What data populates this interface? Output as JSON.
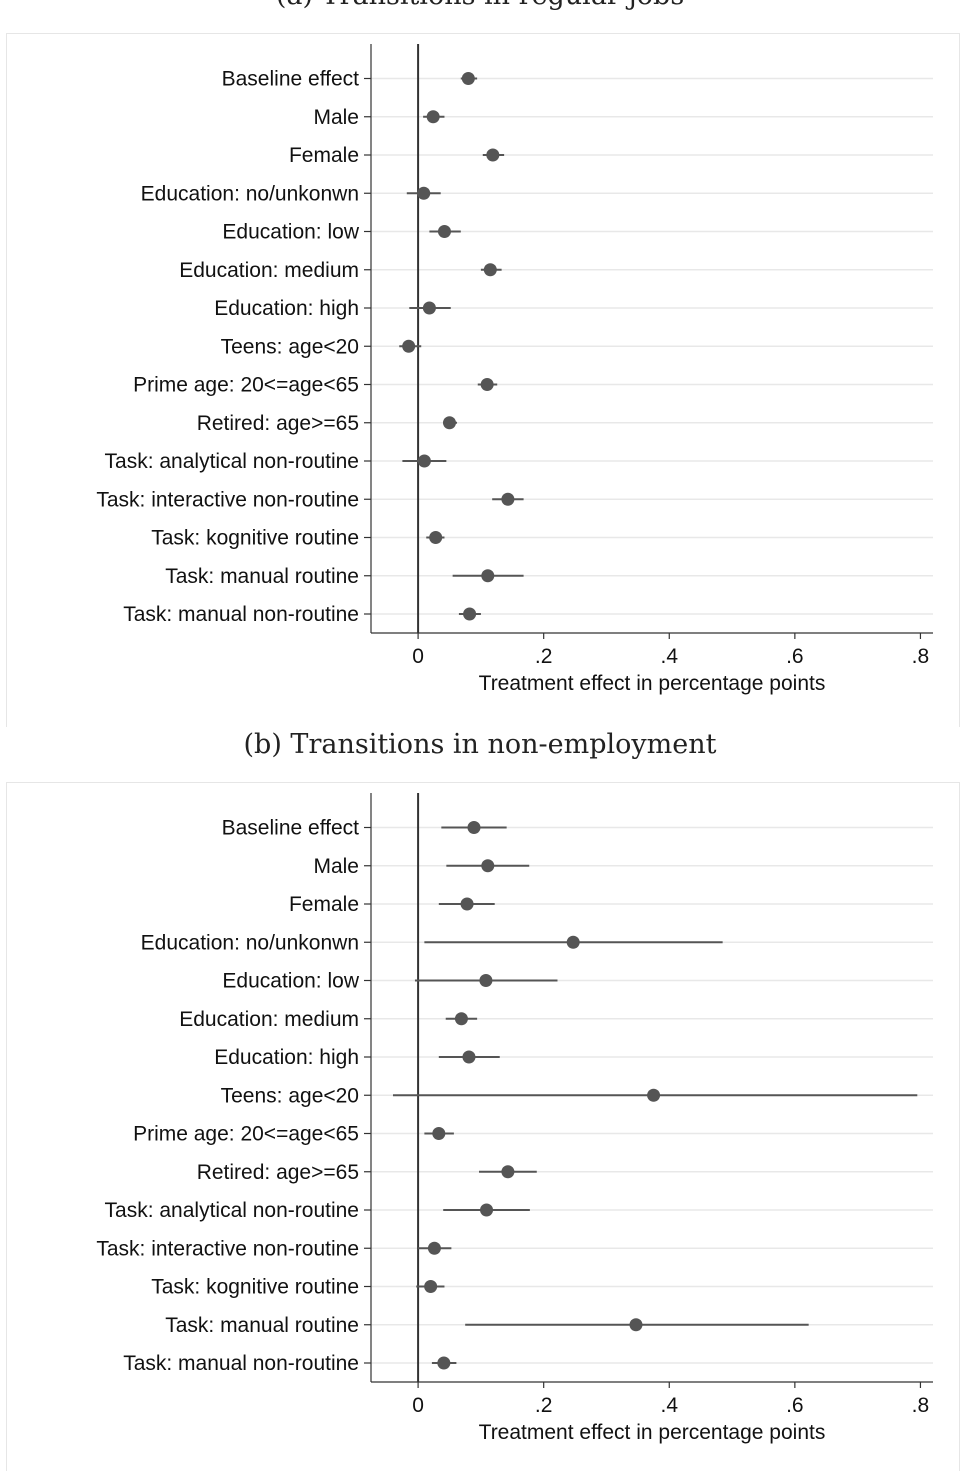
{
  "chart_data": [
    {
      "type": "scatter",
      "caption": "(a) Transitions in regular jobs",
      "xlabel": "Treatment effect in percentage points",
      "xlim": [
        -0.075,
        0.82
      ],
      "xticks": [
        0,
        0.2,
        0.4,
        0.6,
        0.8
      ],
      "xtick_labels": [
        "0",
        ".2",
        ".4",
        ".6",
        ".8"
      ],
      "reference_line": 0,
      "categories": [
        "Baseline effect",
        "Male",
        "Female",
        "Education: no/unkonwn",
        "Education: low",
        "Education: medium",
        "Education: high",
        "Teens: age<20",
        "Prime age: 20<=age<65",
        "Retired: age>=65",
        "Task: analytical non-routine",
        "Task: interactive non-routine",
        "Task: kognitive routine",
        "Task: manual routine",
        "Task: manual non-routine"
      ],
      "estimates": [
        0.08,
        0.024,
        0.119,
        0.009,
        0.042,
        0.115,
        0.018,
        -0.015,
        0.11,
        0.05,
        0.01,
        0.143,
        0.028,
        0.111,
        0.082
      ],
      "ci_low": [
        0.068,
        0.008,
        0.103,
        -0.018,
        0.018,
        0.1,
        -0.014,
        -0.03,
        0.095,
        0.04,
        -0.025,
        0.118,
        0.013,
        0.055,
        0.065
      ],
      "ci_high": [
        0.094,
        0.042,
        0.137,
        0.036,
        0.068,
        0.133,
        0.052,
        0.005,
        0.126,
        0.062,
        0.045,
        0.168,
        0.042,
        0.168,
        0.1
      ]
    },
    {
      "type": "scatter",
      "caption": "(b) Transitions in non-employment",
      "xlabel": "Treatment effect in percentage points",
      "xlim": [
        -0.075,
        0.82
      ],
      "xticks": [
        0,
        0.2,
        0.4,
        0.6,
        0.8
      ],
      "xtick_labels": [
        "0",
        ".2",
        ".4",
        ".6",
        ".8"
      ],
      "reference_line": 0,
      "categories": [
        "Baseline effect",
        "Male",
        "Female",
        "Education: no/unkonwn",
        "Education: low",
        "Education: medium",
        "Education: high",
        "Teens: age<20",
        "Prime age: 20<=age<65",
        "Retired: age>=65",
        "Task: analytical non-routine",
        "Task: interactive non-routine",
        "Task: kognitive routine",
        "Task: manual routine",
        "Task: manual non-routine"
      ],
      "estimates": [
        0.089,
        0.111,
        0.078,
        0.247,
        0.108,
        0.069,
        0.081,
        0.375,
        0.033,
        0.143,
        0.109,
        0.026,
        0.02,
        0.347,
        0.041
      ],
      "ci_low": [
        0.037,
        0.045,
        0.033,
        0.01,
        -0.005,
        0.044,
        0.033,
        -0.04,
        0.01,
        0.097,
        0.04,
        0.0,
        -0.003,
        0.075,
        0.022
      ],
      "ci_high": [
        0.141,
        0.177,
        0.122,
        0.485,
        0.222,
        0.094,
        0.13,
        0.795,
        0.057,
        0.189,
        0.178,
        0.053,
        0.042,
        0.622,
        0.061
      ]
    }
  ]
}
